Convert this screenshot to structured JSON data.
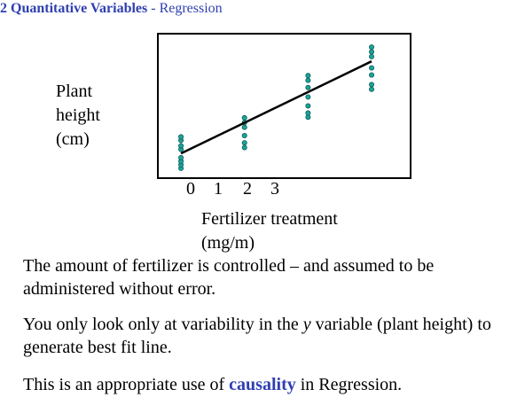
{
  "header": {
    "section": "2 Quantitative Variables",
    "separator": " - ",
    "subtitle": "Regression"
  },
  "chart_data": {
    "type": "scatter",
    "ylabel_lines": [
      "Plant",
      "height",
      "(cm)"
    ],
    "xlabel_lines": [
      "Fertilizer treatment",
      "(mg/m)"
    ],
    "x_ticks": [
      "0",
      "1",
      "2",
      "3"
    ],
    "groups": [
      {
        "x": 0,
        "y": [
          1.5,
          2.1,
          2.7,
          3.3,
          4.7,
          5.3,
          6.2,
          6.8
        ]
      },
      {
        "x": 1,
        "y": [
          5.0,
          5.8,
          7.0,
          8.4,
          9.2,
          10.0
        ]
      },
      {
        "x": 2,
        "y": [
          10.1,
          10.8,
          12.0,
          13.5,
          15.1,
          16.3,
          17.1
        ]
      },
      {
        "x": 3,
        "y": [
          14.8,
          15.6,
          17.2,
          18.4,
          20.3,
          21.1,
          21.9
        ]
      }
    ],
    "fit_line": {
      "x": [
        0,
        3
      ],
      "y": [
        4.0,
        19.5
      ]
    },
    "xlim": [
      -0.35,
      3.6
    ],
    "ylim": [
      0,
      24
    ],
    "point_color": "#1aa59a",
    "point_edge": "#0b5a55",
    "line_color": "#000000",
    "grid": false,
    "legend": "none"
  },
  "text": {
    "p1": "The amount of fertilizer is controlled – and assumed to be administered without error.",
    "p2_a": "You only look only at variability in the ",
    "p2_var": "y",
    "p2_b": " variable (plant height) to generate best fit line.",
    "p3_a": "This is an appropriate use of ",
    "p3_em": "causality",
    "p3_b": " in Regression."
  }
}
